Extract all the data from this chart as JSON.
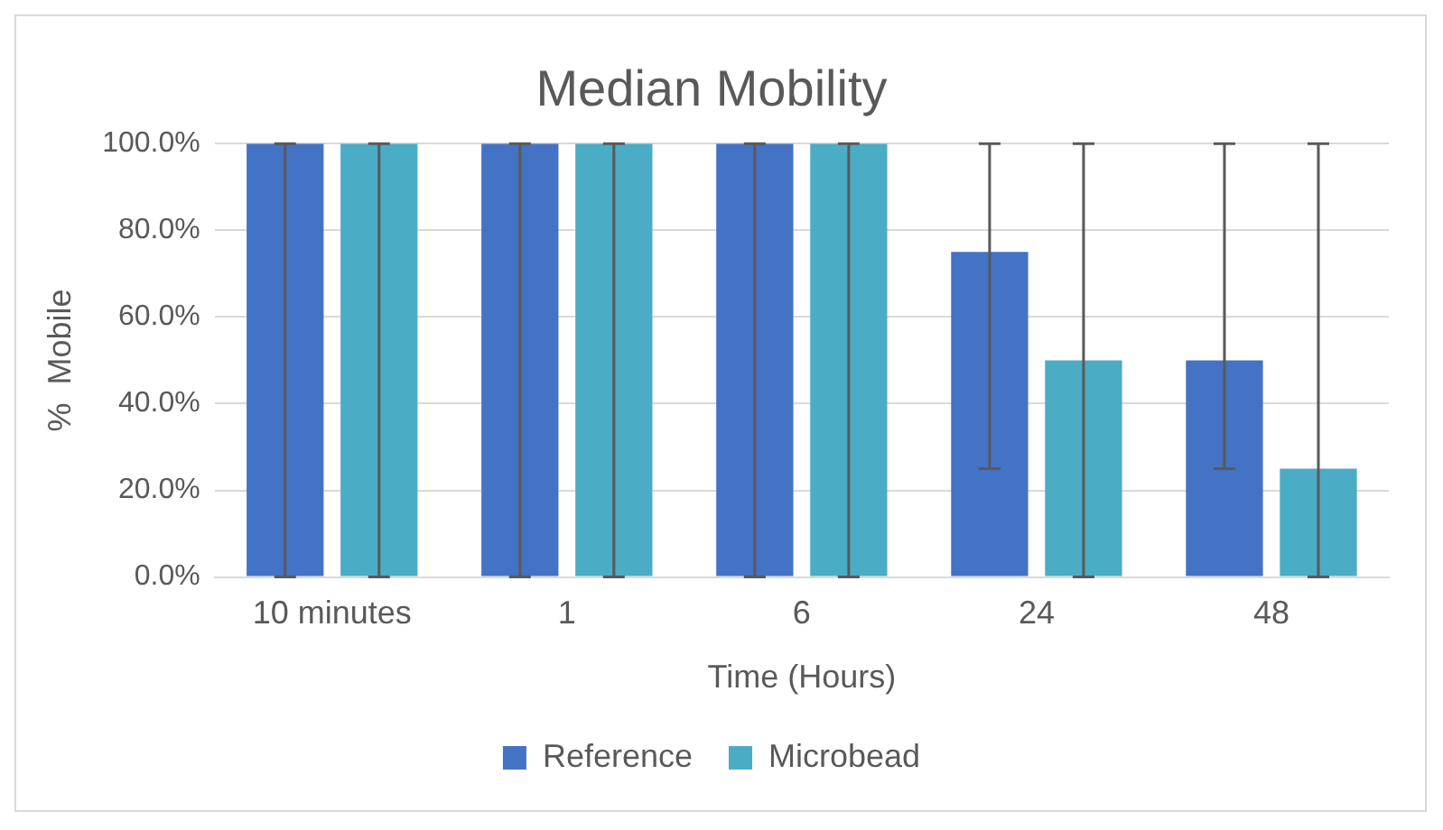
{
  "chart_data": {
    "type": "bar",
    "title": "Median Mobility",
    "xlabel": "Time (Hours)",
    "ylabel": "%  Mobile",
    "categories": [
      "10 minutes",
      "1",
      "6",
      "24",
      "48"
    ],
    "series": [
      {
        "name": "Reference",
        "color": "#4472c4",
        "values": [
          100,
          100,
          100,
          75,
          50
        ],
        "errors": [
          [
            0,
            100
          ],
          [
            0,
            100
          ],
          [
            0,
            100
          ],
          [
            25,
            100
          ],
          [
            25,
            100
          ]
        ]
      },
      {
        "name": "Microbead",
        "color": "#4bacc6",
        "values": [
          100,
          100,
          100,
          50,
          25
        ],
        "errors": [
          [
            0,
            100
          ],
          [
            0,
            100
          ],
          [
            0,
            100
          ],
          [
            0,
            100
          ],
          [
            0,
            100
          ]
        ]
      }
    ],
    "ylim": [
      0,
      100
    ],
    "yticks": [
      {
        "value": 0,
        "label": "0.0%"
      },
      {
        "value": 20,
        "label": "20.0%"
      },
      {
        "value": 40,
        "label": "40.0%"
      },
      {
        "value": 60,
        "label": "60.0%"
      },
      {
        "value": 80,
        "label": "80.0%"
      },
      {
        "value": 100,
        "label": "100.0%"
      }
    ],
    "grid": "y",
    "legend": "bottom"
  }
}
